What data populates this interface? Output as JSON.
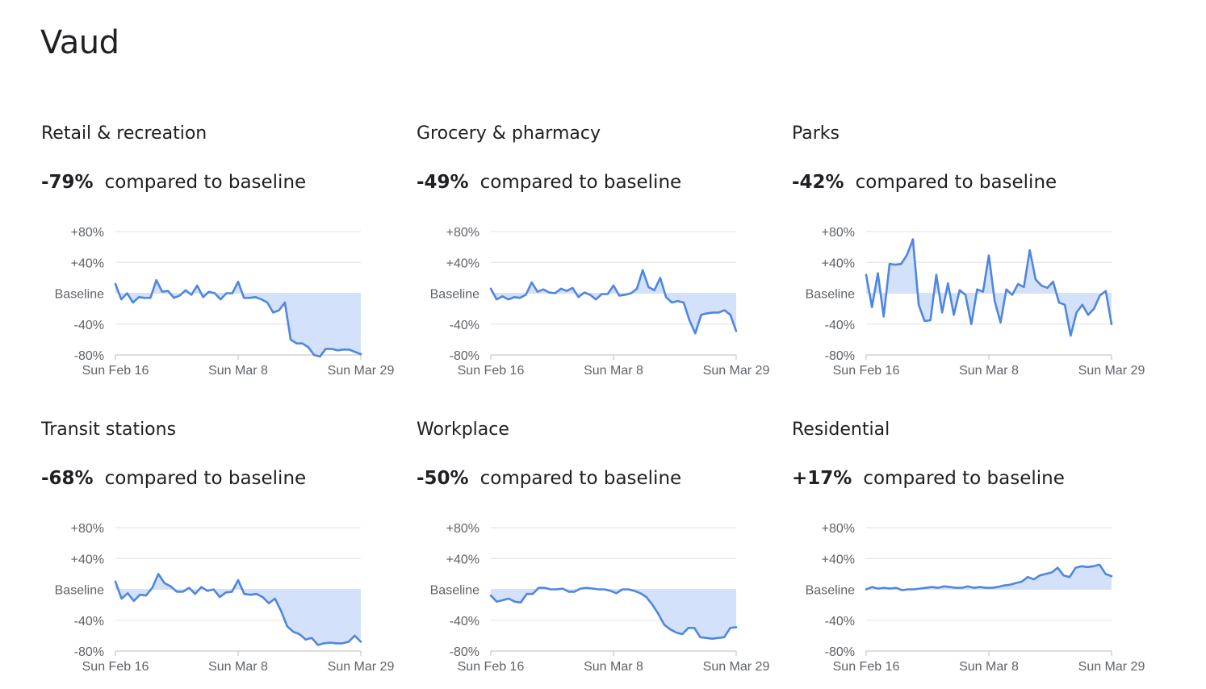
{
  "region": "Vaud",
  "headline_suffix": "compared to baseline",
  "colors": {
    "line": "#4f86e0",
    "fill": "#d4e1fa",
    "grid": "#e0e0e0",
    "axis": "#bdbdbd"
  },
  "y_ticks": [
    "+80%",
    "+40%",
    "Baseline",
    "-40%",
    "-80%"
  ],
  "x_ticks": [
    "Sun Feb 16",
    "Sun Mar 8",
    "Sun Mar 29"
  ],
  "chart_data": [
    {
      "type": "area",
      "title": "Retail & recreation",
      "change": "-79%",
      "x_range": [
        "2020-02-16",
        "2020-03-29"
      ],
      "ylim": [
        -80,
        80
      ],
      "values": [
        12,
        -8,
        0,
        -12,
        -5,
        -6,
        -6,
        17,
        2,
        3,
        -6,
        -3,
        4,
        -2,
        10,
        -5,
        2,
        0,
        -8,
        0,
        0,
        15,
        -6,
        -6,
        -5,
        -8,
        -12,
        -25,
        -22,
        -12,
        -60,
        -65,
        -65,
        -70,
        -80,
        -82,
        -72,
        -72,
        -74,
        -73,
        -73,
        -76,
        -79
      ],
      "ylabel": "",
      "xlabel": "",
      "grid": true
    },
    {
      "type": "area",
      "title": "Grocery & pharmacy",
      "change": "-49%",
      "x_range": [
        "2020-02-16",
        "2020-03-29"
      ],
      "ylim": [
        -80,
        80
      ],
      "values": [
        6,
        -8,
        -4,
        -8,
        -5,
        -6,
        -2,
        14,
        2,
        5,
        1,
        0,
        6,
        3,
        7,
        -5,
        1,
        -2,
        -8,
        -1,
        -1,
        10,
        -3,
        -2,
        0,
        6,
        30,
        8,
        4,
        20,
        -5,
        -12,
        -10,
        -12,
        -35,
        -52,
        -28,
        -26,
        -25,
        -25,
        -22,
        -28,
        -49
      ],
      "ylabel": "",
      "xlabel": "",
      "grid": true
    },
    {
      "type": "area",
      "title": "Parks",
      "change": "-42%",
      "x_range": [
        "2020-02-16",
        "2020-03-29"
      ],
      "ylim": [
        -80,
        80
      ],
      "values": [
        24,
        -18,
        26,
        -30,
        38,
        37,
        38,
        50,
        70,
        -15,
        -36,
        -35,
        24,
        -25,
        13,
        -28,
        4,
        -2,
        -40,
        5,
        2,
        49,
        -10,
        -38,
        5,
        -2,
        12,
        8,
        56,
        18,
        10,
        7,
        15,
        -12,
        -15,
        -55,
        -25,
        -15,
        -28,
        -20,
        -3,
        3,
        -40
      ],
      "ylabel": "",
      "xlabel": "",
      "grid": true
    },
    {
      "type": "area",
      "title": "Transit stations",
      "change": "-68%",
      "x_range": [
        "2020-02-16",
        "2020-03-29"
      ],
      "ylim": [
        -80,
        80
      ],
      "values": [
        10,
        -12,
        -5,
        -15,
        -7,
        -8,
        2,
        20,
        8,
        4,
        -3,
        -3,
        2,
        -6,
        3,
        -2,
        0,
        -10,
        -4,
        -3,
        12,
        -6,
        -7,
        -6,
        -10,
        -18,
        -12,
        -28,
        -48,
        -55,
        -58,
        -65,
        -63,
        -72,
        -70,
        -69,
        -70,
        -70,
        -68,
        -60,
        -68
      ],
      "ylabel": "",
      "xlabel": "",
      "grid": true
    },
    {
      "type": "area",
      "title": "Workplace",
      "change": "-50%",
      "x_range": [
        "2020-02-16",
        "2020-03-29"
      ],
      "ylim": [
        -80,
        80
      ],
      "values": [
        -8,
        -16,
        -14,
        -12,
        -16,
        -17,
        -6,
        -6,
        2,
        2,
        0,
        0,
        1,
        -3,
        -3,
        1,
        2,
        1,
        0,
        0,
        -2,
        -5,
        0,
        0,
        -2,
        -5,
        -10,
        -20,
        -32,
        -46,
        -52,
        -56,
        -58,
        -50,
        -50,
        -62,
        -63,
        -64,
        -63,
        -62,
        -50,
        -49
      ],
      "ylabel": "",
      "xlabel": "",
      "grid": true
    },
    {
      "type": "area",
      "title": "Residential",
      "change": "+17%",
      "x_range": [
        "2020-02-16",
        "2020-03-29"
      ],
      "ylim": [
        -80,
        80
      ],
      "values": [
        0,
        3,
        1,
        2,
        1,
        2,
        -1,
        0,
        0,
        1,
        2,
        3,
        2,
        4,
        3,
        2,
        2,
        4,
        2,
        3,
        2,
        2,
        3,
        5,
        6,
        8,
        10,
        16,
        13,
        18,
        20,
        22,
        28,
        18,
        16,
        28,
        30,
        29,
        30,
        32,
        20,
        17
      ],
      "ylabel": "",
      "xlabel": "",
      "grid": true
    }
  ]
}
